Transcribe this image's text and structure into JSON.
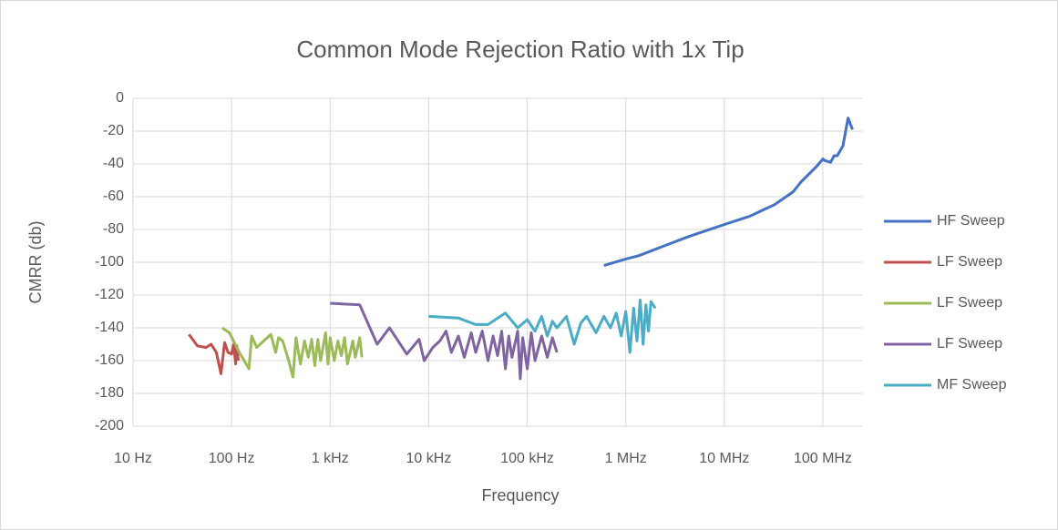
{
  "chart_data": {
    "type": "line",
    "title": "Common Mode Rejection Ratio with 1x Tip",
    "x_label": "Frequency",
    "y_label": "CMRR (db)",
    "log_x": true,
    "grid": true,
    "legend": "right",
    "xlim": [
      10,
      250000000
    ],
    "ylim": [
      -200,
      0
    ],
    "xticks": [
      {
        "value": 10,
        "label": "10 Hz"
      },
      {
        "value": 100,
        "label": "100 Hz"
      },
      {
        "value": 1000,
        "label": "1 kHz"
      },
      {
        "value": 10000,
        "label": "10 kHz"
      },
      {
        "value": 100000,
        "label": "100 kHz"
      },
      {
        "value": 1000000,
        "label": "1 MHz"
      },
      {
        "value": 10000000,
        "label": "10 MHz"
      },
      {
        "value": 100000000,
        "label": "100 MHz"
      }
    ],
    "yticks": [
      -200,
      -180,
      -160,
      -140,
      -120,
      -100,
      -80,
      -60,
      -40,
      -20,
      0
    ],
    "series": [
      {
        "name": "HF Sweep",
        "color": "#4472c4",
        "x": [
          600000,
          1000000,
          1350000,
          3000000,
          4500000,
          10000000,
          18000000,
          27000000,
          32000000,
          50000000,
          60000000,
          85000000,
          100000000,
          105000000,
          120000000,
          130000000,
          140000000,
          160000000,
          180000000,
          200000000
        ],
        "values": [
          -102,
          -98,
          -96,
          -88,
          -84,
          -77,
          -72,
          -67,
          -65,
          -57,
          -51,
          -42,
          -37,
          -38,
          -39,
          -35,
          -35,
          -29,
          -12,
          -19
        ]
      },
      {
        "name": "LF Sweep",
        "color": "#c0504d",
        "x": [
          37,
          45,
          55,
          62,
          70,
          78,
          85,
          92,
          100,
          105,
          110,
          113,
          117
        ],
        "values": [
          -144,
          -151,
          -152,
          -150,
          -155,
          -168,
          -149,
          -155,
          -156,
          -150,
          -162,
          -151,
          -160
        ]
      },
      {
        "name": "LF Sweep",
        "color": "#9bbb59",
        "x": [
          80,
          95,
          120,
          150,
          160,
          180,
          220,
          250,
          280,
          300,
          330,
          380,
          420,
          450,
          500,
          550,
          600,
          650,
          700,
          750,
          800,
          900,
          950,
          1000,
          1100,
          1200,
          1300,
          1400,
          1500,
          1700,
          1800,
          2000,
          2100
        ],
        "values": [
          -140,
          -143,
          -155,
          -165,
          -145,
          -152,
          -147,
          -144,
          -155,
          -146,
          -148,
          -160,
          -170,
          -146,
          -162,
          -148,
          -158,
          -147,
          -163,
          -147,
          -160,
          -143,
          -162,
          -146,
          -160,
          -148,
          -157,
          -146,
          -162,
          -148,
          -158,
          -146,
          -158
        ]
      },
      {
        "name": "LF Sweep",
        "color": "#8064a2",
        "x": [
          1000,
          2000,
          3000,
          4000,
          6000,
          8000,
          9000,
          11000,
          13000,
          15000,
          17000,
          20000,
          23000,
          27000,
          30000,
          35000,
          40000,
          45000,
          50000,
          55000,
          60000,
          65000,
          70000,
          80000,
          85000,
          90000,
          100000,
          110000,
          120000,
          140000,
          160000,
          180000,
          200000
        ],
        "values": [
          -125,
          -126,
          -150,
          -140,
          -156,
          -147,
          -160,
          -152,
          -148,
          -142,
          -155,
          -145,
          -158,
          -143,
          -155,
          -142,
          -160,
          -145,
          -157,
          -142,
          -165,
          -145,
          -158,
          -142,
          -171,
          -146,
          -165,
          -143,
          -160,
          -145,
          -158,
          -146,
          -155
        ]
      },
      {
        "name": "MF Sweep",
        "color": "#4bacc6",
        "x": [
          10000,
          20000,
          30000,
          40000,
          60000,
          80000,
          100000,
          120000,
          140000,
          160000,
          180000,
          200000,
          250000,
          300000,
          350000,
          400000,
          500000,
          600000,
          700000,
          800000,
          900000,
          1000000,
          1100000,
          1200000,
          1300000,
          1400000,
          1500000,
          1600000,
          1700000,
          1800000,
          2000000
        ],
        "values": [
          -133,
          -134,
          -138,
          -138,
          -131,
          -140,
          -135,
          -142,
          -133,
          -145,
          -136,
          -140,
          -133,
          -150,
          -137,
          -133,
          -143,
          -133,
          -140,
          -131,
          -145,
          -130,
          -155,
          -128,
          -148,
          -123,
          -150,
          -126,
          -142,
          -124,
          -128
        ]
      }
    ]
  }
}
